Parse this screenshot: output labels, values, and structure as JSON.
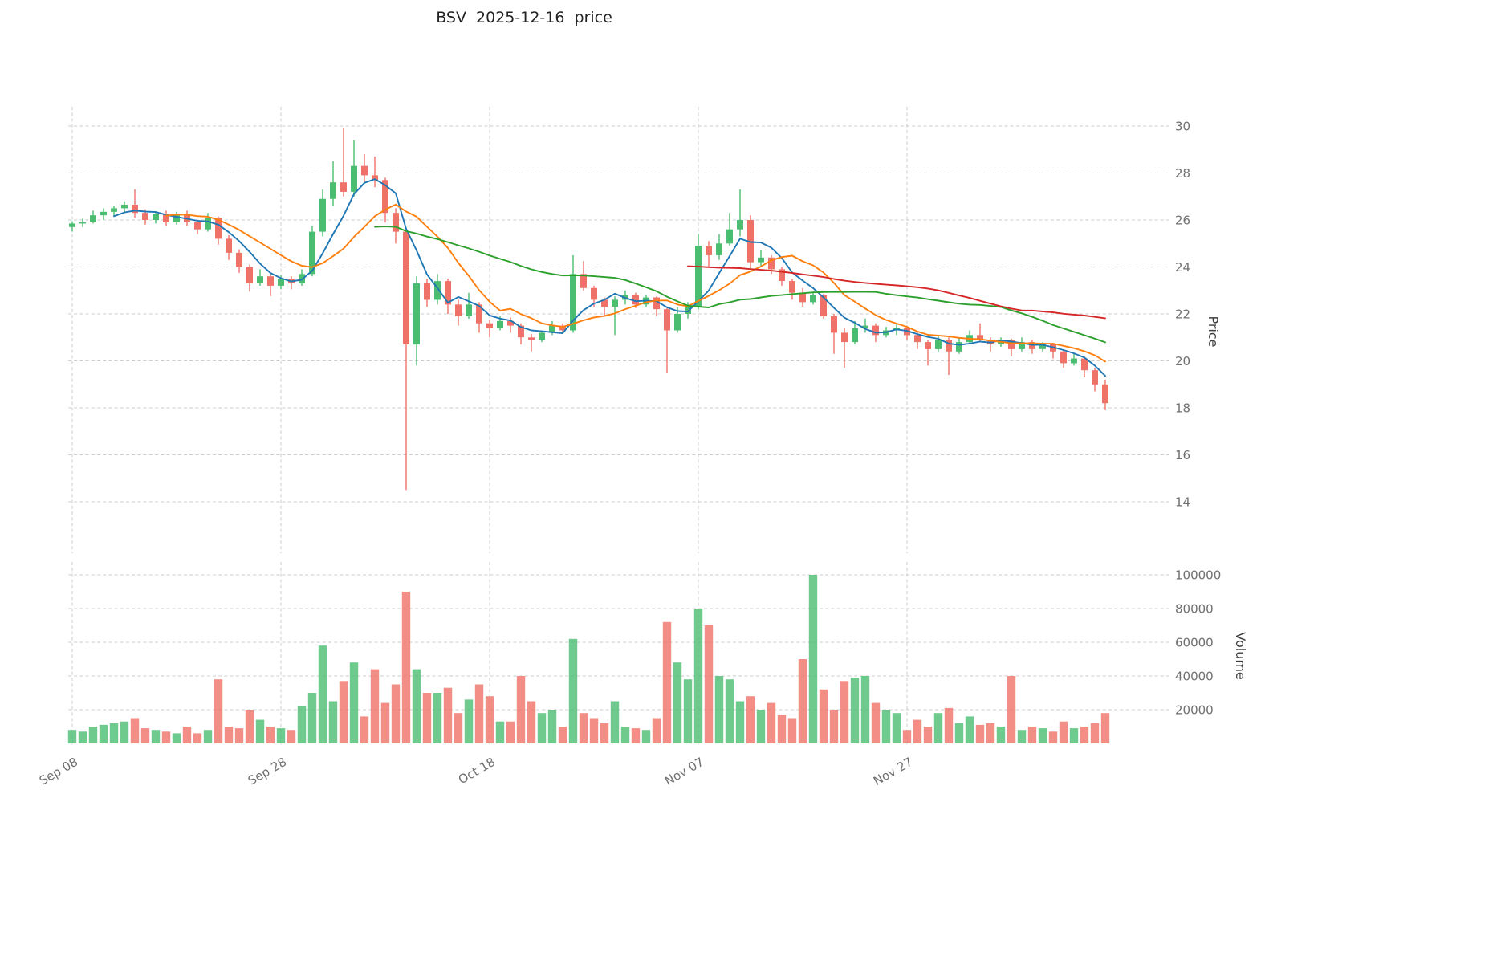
{
  "title": "BSV  2025-12-16  price",
  "colors": {
    "up": "#4bbd70",
    "down": "#ef7268",
    "ma": [
      "#1f77b4",
      "#ff7f0e",
      "#2ca02c",
      "#d62728"
    ],
    "grid": "#cdcdcd",
    "tick_label": "#707070",
    "background": "#ffffff"
  },
  "chart_data": {
    "type": "candlestick",
    "symbol": "BSV",
    "as_of_date": "2025-12-16",
    "title": "BSV  2025-12-16  price",
    "grid": true,
    "legend": false,
    "x_tick_labels": [
      "Sep 08",
      "Sep 28",
      "Oct 18",
      "Nov 07",
      "Nov 27"
    ],
    "x_tick_indices": [
      0,
      20,
      40,
      60,
      80
    ],
    "price_axis": {
      "label": "Price",
      "side": "right",
      "ticks": [
        14,
        16,
        18,
        20,
        22,
        24,
        26,
        28,
        30
      ],
      "range": [
        11.9,
        30.8
      ]
    },
    "volume_axis": {
      "label": "Volume",
      "side": "right",
      "ticks": [
        20000,
        40000,
        60000,
        80000,
        100000
      ],
      "range": [
        0,
        107000
      ]
    },
    "ma_periods": [
      5,
      10,
      30,
      60
    ],
    "candles": {
      "open": [
        25.7,
        25.85,
        25.9,
        26.2,
        26.35,
        26.5,
        26.65,
        26.3,
        26.0,
        26.25,
        25.9,
        26.2,
        25.9,
        25.6,
        26.1,
        25.2,
        24.6,
        24.0,
        23.3,
        23.6,
        23.2,
        23.5,
        23.3,
        23.7,
        25.5,
        26.9,
        27.6,
        27.2,
        28.3,
        27.9,
        27.7,
        26.3,
        25.5,
        20.7,
        23.3,
        22.6,
        23.4,
        22.4,
        21.9,
        22.4,
        21.6,
        21.4,
        21.7,
        21.5,
        21.0,
        20.9,
        21.2,
        21.5,
        21.3,
        23.7,
        23.1,
        22.6,
        22.3,
        22.6,
        22.8,
        22.4,
        22.7,
        22.2,
        21.3,
        22.0,
        22.3,
        24.9,
        24.5,
        25.0,
        25.6,
        26.0,
        24.2,
        24.4,
        23.9,
        23.4,
        22.9,
        22.5,
        22.8,
        21.9,
        21.2,
        20.8,
        21.4,
        21.5,
        21.1,
        21.3,
        21.4,
        21.1,
        20.8,
        20.5,
        20.9,
        20.4,
        20.8,
        21.1,
        20.9,
        20.7,
        20.9,
        20.5,
        20.8,
        20.5,
        20.7,
        20.4,
        19.9,
        20.1,
        19.6,
        19.0
      ],
      "high": [
        25.95,
        26.05,
        26.4,
        26.5,
        26.6,
        26.8,
        27.3,
        26.45,
        26.35,
        26.4,
        26.35,
        26.4,
        26.0,
        26.3,
        26.15,
        25.35,
        24.75,
        24.1,
        23.9,
        23.7,
        23.65,
        23.6,
        23.9,
        25.75,
        27.3,
        28.5,
        29.9,
        29.4,
        28.8,
        28.7,
        27.8,
        26.5,
        25.6,
        23.6,
        23.5,
        23.7,
        23.5,
        22.6,
        22.9,
        22.5,
        21.75,
        21.9,
        21.85,
        21.6,
        21.15,
        21.3,
        21.7,
        21.6,
        24.5,
        24.25,
        23.2,
        22.7,
        22.75,
        23.0,
        22.9,
        22.8,
        22.75,
        22.3,
        22.3,
        22.5,
        25.4,
        25.1,
        25.4,
        26.3,
        27.3,
        26.2,
        24.7,
        24.5,
        24.0,
        23.5,
        23.1,
        22.9,
        22.85,
        22.0,
        21.4,
        21.7,
        21.8,
        21.6,
        21.45,
        21.6,
        21.5,
        21.2,
        20.9,
        21.1,
        21.0,
        21.0,
        21.3,
        21.6,
        21.0,
        21.0,
        20.95,
        21.0,
        20.9,
        20.8,
        20.75,
        20.5,
        20.3,
        20.2,
        19.7,
        19.2
      ],
      "low": [
        25.5,
        25.7,
        25.85,
        26.0,
        26.15,
        26.3,
        26.1,
        25.8,
        25.85,
        25.75,
        25.8,
        25.75,
        25.4,
        25.5,
        24.95,
        24.3,
        23.75,
        22.95,
        23.2,
        22.75,
        23.05,
        23.05,
        23.2,
        23.6,
        25.3,
        26.6,
        27.0,
        27.0,
        27.6,
        27.4,
        25.9,
        25.0,
        14.5,
        19.8,
        22.3,
        22.4,
        22.0,
        21.5,
        21.8,
        21.2,
        21.0,
        21.3,
        21.2,
        20.7,
        20.4,
        20.8,
        21.1,
        21.15,
        21.2,
        23.0,
        22.3,
        21.9,
        21.1,
        22.4,
        22.25,
        22.3,
        21.9,
        19.5,
        21.2,
        21.8,
        22.2,
        24.0,
        24.3,
        24.9,
        25.3,
        23.9,
        24.0,
        23.7,
        23.2,
        22.6,
        22.3,
        22.4,
        21.8,
        20.3,
        19.7,
        20.7,
        21.2,
        20.8,
        21.0,
        21.1,
        20.9,
        20.5,
        19.8,
        20.4,
        19.4,
        20.3,
        20.7,
        20.8,
        20.4,
        20.6,
        20.2,
        20.4,
        20.3,
        20.4,
        20.1,
        19.7,
        19.8,
        19.3,
        18.7,
        17.9
      ],
      "close": [
        25.85,
        25.9,
        26.2,
        26.35,
        26.5,
        26.65,
        26.3,
        26.0,
        26.25,
        25.9,
        26.2,
        25.9,
        25.6,
        26.1,
        25.2,
        24.6,
        24.0,
        23.3,
        23.6,
        23.2,
        23.5,
        23.3,
        23.7,
        25.5,
        26.9,
        27.6,
        27.2,
        28.3,
        27.9,
        27.7,
        26.3,
        25.5,
        20.7,
        23.3,
        22.6,
        23.4,
        22.4,
        21.9,
        22.4,
        21.6,
        21.4,
        21.7,
        21.5,
        21.0,
        20.9,
        21.2,
        21.5,
        21.3,
        23.7,
        23.1,
        22.6,
        22.3,
        22.6,
        22.8,
        22.4,
        22.7,
        22.2,
        21.3,
        22.0,
        22.3,
        24.9,
        24.5,
        25.0,
        25.6,
        26.0,
        24.2,
        24.4,
        23.9,
        23.4,
        22.9,
        22.5,
        22.8,
        21.9,
        21.2,
        20.8,
        21.4,
        21.5,
        21.1,
        21.3,
        21.4,
        21.1,
        20.8,
        20.5,
        20.9,
        20.4,
        20.8,
        21.1,
        20.9,
        20.7,
        20.9,
        20.5,
        20.8,
        20.5,
        20.7,
        20.4,
        19.9,
        20.1,
        19.6,
        19.0,
        18.2
      ],
      "volume": [
        8000,
        7000,
        10000,
        11000,
        12000,
        13000,
        15000,
        9000,
        8000,
        7000,
        6000,
        10000,
        6000,
        8000,
        38000,
        10000,
        9000,
        20000,
        14000,
        10000,
        9000,
        8000,
        22000,
        30000,
        58000,
        25000,
        37000,
        48000,
        16000,
        44000,
        24000,
        35000,
        90000,
        44000,
        30000,
        30000,
        33000,
        18000,
        26000,
        35000,
        28000,
        13000,
        13000,
        40000,
        25000,
        18000,
        20000,
        10000,
        62000,
        18000,
        15000,
        12000,
        25000,
        10000,
        9000,
        8000,
        15000,
        72000,
        48000,
        38000,
        80000,
        70000,
        40000,
        38000,
        25000,
        28000,
        20000,
        24000,
        17000,
        15000,
        50000,
        100000,
        32000,
        20000,
        37000,
        39000,
        40000,
        24000,
        20000,
        18000,
        8000,
        14000,
        10000,
        18000,
        21000,
        12000,
        16000,
        11000,
        12000,
        10000,
        40000,
        8000,
        10000,
        9000,
        7000,
        13000,
        9000,
        10000,
        12000,
        18000
      ]
    }
  }
}
